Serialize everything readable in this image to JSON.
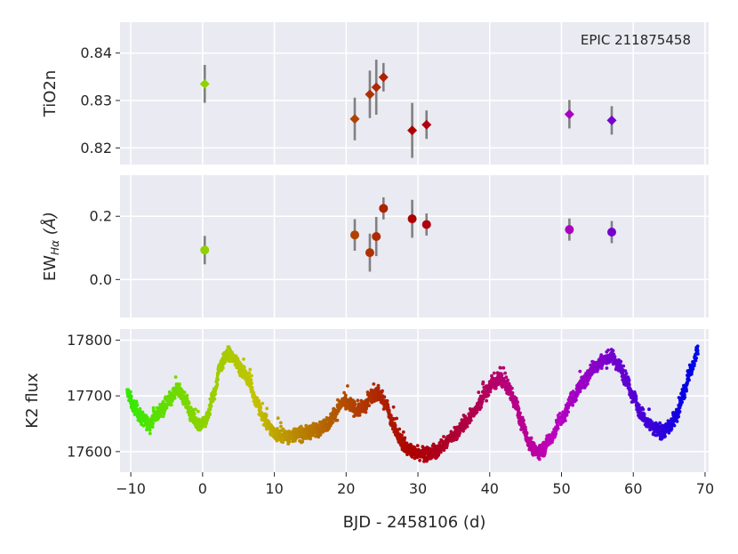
{
  "chart_data": {
    "type": "scatter",
    "xlabel": "BJD - 2458106 (d)",
    "xlim": [
      -11.5,
      70.5
    ],
    "xticks": [
      -10,
      0,
      10,
      20,
      30,
      40,
      50,
      60,
      70
    ],
    "xticklabels": [
      "−10",
      "0",
      "10",
      "20",
      "30",
      "40",
      "50",
      "60",
      "70"
    ],
    "colormap": "hue gradient: green (x=-10) → olive → red (x≈30) → magenta → purple → blue (x=70)",
    "annotation": "EPIC 211875458",
    "panels": [
      {
        "name": "tio2n",
        "ylabel": "TiO2n",
        "ylim": [
          0.8165,
          0.8465
        ],
        "yticks": [
          0.82,
          0.83,
          0.84
        ],
        "yticklabels": [
          "0.82",
          "0.83",
          "0.84"
        ],
        "marker": "diamond",
        "points": [
          {
            "x": 0.3,
            "y": 0.8335,
            "err": 0.004
          },
          {
            "x": 21.2,
            "y": 0.8261,
            "err": 0.0045
          },
          {
            "x": 23.3,
            "y": 0.8313,
            "err": 0.005
          },
          {
            "x": 24.2,
            "y": 0.8328,
            "err": 0.0058
          },
          {
            "x": 25.2,
            "y": 0.8349,
            "err": 0.003
          },
          {
            "x": 29.2,
            "y": 0.8237,
            "err": 0.0058
          },
          {
            "x": 31.2,
            "y": 0.8249,
            "err": 0.003
          },
          {
            "x": 51.1,
            "y": 0.8271,
            "err": 0.003
          },
          {
            "x": 57.0,
            "y": 0.8258,
            "err": 0.003
          }
        ]
      },
      {
        "name": "ewha",
        "ylabel": "EW",
        "ylabel_sub": "Hα",
        "ylabel_suffix": " (Å)",
        "ylim": [
          -0.12,
          0.33
        ],
        "yticks": [
          0.0,
          0.2
        ],
        "yticklabels": [
          "0.0",
          "0.2"
        ],
        "marker": "circle",
        "points": [
          {
            "x": 0.3,
            "y": 0.093,
            "err": 0.045
          },
          {
            "x": 21.2,
            "y": 0.141,
            "err": 0.05
          },
          {
            "x": 23.3,
            "y": 0.085,
            "err": 0.06
          },
          {
            "x": 24.2,
            "y": 0.136,
            "err": 0.062
          },
          {
            "x": 25.2,
            "y": 0.225,
            "err": 0.035
          },
          {
            "x": 29.2,
            "y": 0.192,
            "err": 0.06
          },
          {
            "x": 31.2,
            "y": 0.174,
            "err": 0.035
          },
          {
            "x": 51.1,
            "y": 0.158,
            "err": 0.035
          },
          {
            "x": 57.0,
            "y": 0.15,
            "err": 0.035
          }
        ]
      },
      {
        "name": "k2flux",
        "ylabel": "K2 flux",
        "ylim": [
          17563,
          17820
        ],
        "yticks": [
          17600,
          17700,
          17800
        ],
        "yticklabels": [
          "17600",
          "17700",
          "17800"
        ],
        "marker": "dot",
        "series_description": "dense light curve, approx. 30-min cadence from x=-10.5 to x=69",
        "curve_knots": [
          [
            -10.5,
            17705
          ],
          [
            -9.5,
            17680
          ],
          [
            -8.5,
            17660
          ],
          [
            -7.5,
            17650
          ],
          [
            -6.5,
            17665
          ],
          [
            -5.5,
            17680
          ],
          [
            -4.5,
            17695
          ],
          [
            -3.5,
            17712
          ],
          [
            -2.5,
            17695
          ],
          [
            -1.5,
            17665
          ],
          [
            -0.5,
            17645
          ],
          [
            0.5,
            17655
          ],
          [
            1.5,
            17700
          ],
          [
            2.5,
            17755
          ],
          [
            3.5,
            17775
          ],
          [
            4.5,
            17765
          ],
          [
            5.5,
            17745
          ],
          [
            6.5,
            17725
          ],
          [
            7.5,
            17690
          ],
          [
            8.5,
            17660
          ],
          [
            9.5,
            17640
          ],
          [
            10.5,
            17630
          ],
          [
            12,
            17628
          ],
          [
            14,
            17632
          ],
          [
            16,
            17640
          ],
          [
            17.5,
            17650
          ],
          [
            18.5,
            17670
          ],
          [
            19.5,
            17688
          ],
          [
            20.5,
            17685
          ],
          [
            21.5,
            17675
          ],
          [
            22.5,
            17680
          ],
          [
            23.5,
            17700
          ],
          [
            24.5,
            17705
          ],
          [
            25.5,
            17685
          ],
          [
            26.5,
            17650
          ],
          [
            27.5,
            17620
          ],
          [
            28.5,
            17605
          ],
          [
            29.5,
            17600
          ],
          [
            30.5,
            17597
          ],
          [
            31.5,
            17595
          ],
          [
            32.5,
            17600
          ],
          [
            33.5,
            17612
          ],
          [
            35,
            17630
          ],
          [
            36.5,
            17650
          ],
          [
            38,
            17675
          ],
          [
            39.5,
            17705
          ],
          [
            40.5,
            17725
          ],
          [
            41.5,
            17730
          ],
          [
            42.5,
            17715
          ],
          [
            43.5,
            17690
          ],
          [
            44.5,
            17650
          ],
          [
            45.5,
            17615
          ],
          [
            46.5,
            17600
          ],
          [
            47.5,
            17605
          ],
          [
            48.5,
            17625
          ],
          [
            50,
            17660
          ],
          [
            51.5,
            17695
          ],
          [
            53,
            17725
          ],
          [
            54.5,
            17750
          ],
          [
            56,
            17765
          ],
          [
            57,
            17770
          ],
          [
            58,
            17755
          ],
          [
            59,
            17730
          ],
          [
            60,
            17700
          ],
          [
            61,
            17670
          ],
          [
            62,
            17650
          ],
          [
            63,
            17640
          ],
          [
            64,
            17635
          ],
          [
            65,
            17645
          ],
          [
            66,
            17665
          ],
          [
            67,
            17705
          ],
          [
            68,
            17745
          ],
          [
            69,
            17780
          ]
        ]
      }
    ]
  }
}
